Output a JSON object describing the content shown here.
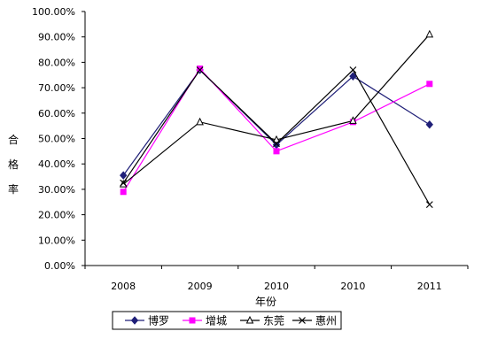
{
  "chart_data": {
    "type": "line",
    "categories": [
      "2008",
      "2009",
      "2010",
      "2010",
      "2011"
    ],
    "xlabel": "年份",
    "ylabel": "合格率",
    "ylim": [
      0,
      100
    ],
    "ytick_labels": [
      "0.00%",
      "10.00%",
      "20.00%",
      "30.00%",
      "40.00%",
      "50.00%",
      "60.00%",
      "70.00%",
      "80.00%",
      "90.00%",
      "100.00%"
    ],
    "grid": false,
    "legend_position": "bottom",
    "series": [
      {
        "name": "博罗",
        "marker": "diamond",
        "color": "#1f1f78",
        "values": [
          35.5,
          77,
          47.5,
          74.5,
          55.5
        ]
      },
      {
        "name": "增城",
        "marker": "square",
        "color": "#ff00ff",
        "values": [
          29,
          77.5,
          45,
          56.5,
          71.5
        ]
      },
      {
        "name": "东莞",
        "marker": "triangle",
        "color": "#000000",
        "values": [
          32,
          56.5,
          49.5,
          57,
          91
        ]
      },
      {
        "name": "惠州",
        "marker": "x",
        "color": "#000000",
        "values": [
          32.5,
          77,
          48,
          77,
          24
        ]
      }
    ]
  }
}
